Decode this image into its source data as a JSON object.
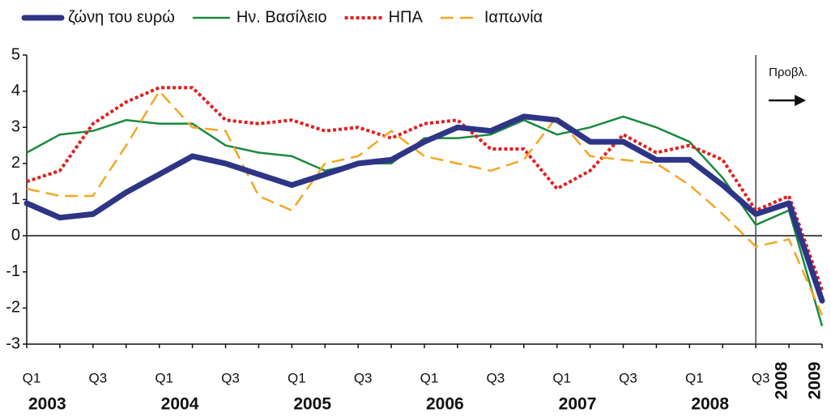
{
  "chart_data": {
    "type": "line",
    "categories": [
      "Q1",
      null,
      "Q3",
      null,
      "Q1",
      null,
      "Q3",
      null,
      "Q1",
      null,
      "Q3",
      null,
      "Q1",
      null,
      "Q3",
      null,
      "Q1",
      null,
      "Q3",
      null,
      "Q1",
      null,
      "Q3",
      "2008",
      "2009"
    ],
    "x_groups": [
      "2003",
      "2004",
      "2005",
      "2006",
      "2007",
      "2008"
    ],
    "annotation": "Προβλ.",
    "series": [
      {
        "name": "ζώνη του ευρώ",
        "color": "#2e3586",
        "style": "thick",
        "values": [
          0.9,
          0.5,
          0.6,
          1.2,
          1.7,
          2.2,
          2.0,
          1.7,
          1.4,
          1.7,
          2.0,
          2.1,
          2.6,
          3.0,
          2.9,
          3.3,
          3.2,
          2.6,
          2.6,
          2.1,
          2.1,
          1.4,
          0.6,
          0.9,
          -1.8
        ]
      },
      {
        "name": "Ην. Βασίλειο",
        "color": "#1a8a3f",
        "style": "solid",
        "values": [
          2.3,
          2.8,
          2.9,
          3.2,
          3.1,
          3.1,
          2.5,
          2.3,
          2.2,
          1.8,
          2.0,
          2.0,
          2.7,
          2.7,
          2.8,
          3.2,
          2.8,
          3.0,
          3.3,
          3.0,
          2.6,
          1.6,
          0.3,
          0.7,
          -2.5
        ]
      },
      {
        "name": "ΗΠΑ",
        "color": "#e02020",
        "style": "dotted",
        "values": [
          1.5,
          1.8,
          3.1,
          3.7,
          4.1,
          4.1,
          3.2,
          3.1,
          3.2,
          2.9,
          3.0,
          2.7,
          3.1,
          3.2,
          2.4,
          2.4,
          1.3,
          1.8,
          2.8,
          2.3,
          2.5,
          2.1,
          0.7,
          1.1,
          -1.5
        ]
      },
      {
        "name": "Ιαπωνία",
        "color": "#f5a623",
        "style": "dashed",
        "values": [
          1.3,
          1.1,
          1.1,
          2.5,
          4.0,
          3.0,
          2.9,
          1.1,
          0.7,
          2.0,
          2.2,
          2.9,
          2.2,
          2.0,
          1.8,
          2.1,
          3.3,
          2.2,
          2.1,
          2.0,
          1.4,
          0.6,
          -0.3,
          -0.1,
          -2.2
        ]
      }
    ],
    "ylim": [
      -3,
      5
    ],
    "yticks": [
      -3,
      -2,
      -1,
      0,
      1,
      2,
      3,
      4,
      5
    ],
    "grid": false
  }
}
